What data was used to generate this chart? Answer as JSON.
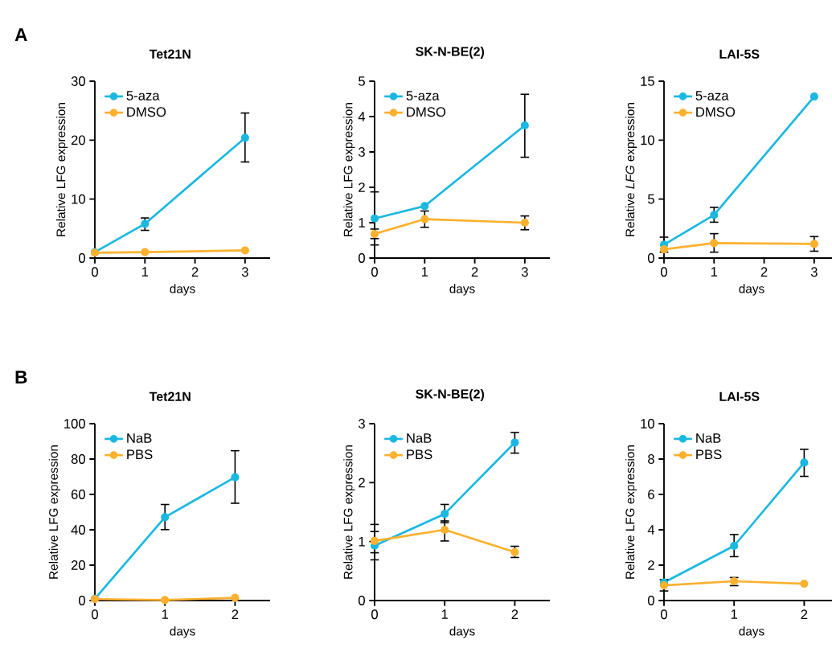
{
  "chart_data": [
    {
      "type": "line",
      "title": "Tet21N",
      "xlabel": "days",
      "ylabel": "Relative LFG expression",
      "annotations": [
        "A"
      ],
      "x": [
        0,
        1,
        3
      ],
      "xlim": [
        0,
        3.5
      ],
      "xticks": [
        0,
        1,
        2,
        3
      ],
      "ylim": [
        0,
        30
      ],
      "yticks": [
        0,
        10,
        20,
        30
      ],
      "marker": "circle",
      "legend": "top left",
      "series": [
        {
          "name": "5-aza",
          "color": "#1ab8e0",
          "values": [
            1.0,
            5.8,
            20.4
          ],
          "errors": [
            null,
            [
              4.7,
              6.8
            ],
            [
              16.3,
              24.6
            ]
          ]
        },
        {
          "name": "DMSO",
          "color": "#fbb12f",
          "values": [
            0.9,
            1.0,
            1.3
          ],
          "errors": [
            null,
            null,
            null
          ]
        }
      ]
    },
    {
      "type": "line",
      "title": "SK-N-BE(2)",
      "xlabel": "days",
      "ylabel": "Relative LFG expression",
      "x": [
        0,
        1,
        3
      ],
      "xlim": [
        0,
        3.5
      ],
      "xticks": [
        0,
        1,
        2,
        3
      ],
      "ylim": [
        0,
        5
      ],
      "yticks": [
        0,
        1,
        2,
        3,
        4,
        5
      ],
      "marker": "circle",
      "legend": "top left",
      "series": [
        {
          "name": "5-aza",
          "color": "#1ab8e0",
          "values": [
            1.12,
            1.47,
            3.75
          ],
          "errors": [
            [
              0.37,
              1.87
            ],
            null,
            [
              2.85,
              4.63
            ]
          ]
        },
        {
          "name": "DMSO",
          "color": "#fbb12f",
          "values": [
            0.68,
            1.1,
            1.0
          ],
          "errors": [
            [
              0.55,
              0.82
            ],
            [
              0.87,
              1.33
            ],
            [
              0.8,
              1.19
            ]
          ]
        }
      ]
    },
    {
      "type": "line",
      "title": "LAI-5S",
      "xlabel": "days",
      "ylabel": "Relative *LFG* expression",
      "x": [
        0,
        1,
        3
      ],
      "xlim": [
        0,
        3.5
      ],
      "xticks": [
        0,
        1,
        2,
        3
      ],
      "ylim": [
        0,
        15
      ],
      "yticks": [
        0,
        5,
        10,
        15
      ],
      "marker": "circle",
      "legend": "top left",
      "series": [
        {
          "name": "5-aza",
          "color": "#1ab8e0",
          "values": [
            1.13,
            3.66,
            13.7
          ],
          "errors": [
            [
              0.5,
              1.77
            ],
            [
              3.04,
              4.3
            ],
            null
          ]
        },
        {
          "name": "DMSO",
          "color": "#fbb12f",
          "values": [
            0.74,
            1.27,
            1.2
          ],
          "errors": [
            null,
            [
              0.5,
              2.07
            ],
            [
              0.58,
              1.82
            ]
          ]
        }
      ]
    },
    {
      "type": "line",
      "title": "Tet21N",
      "xlabel": "days",
      "ylabel": "Relative LFG expression",
      "annotations": [
        "B"
      ],
      "x": [
        0,
        1,
        2
      ],
      "xlim": [
        0,
        2.5
      ],
      "xticks": [
        0,
        1,
        2
      ],
      "ylim": [
        0,
        100
      ],
      "yticks": [
        0,
        20,
        40,
        60,
        80,
        100
      ],
      "marker": "circle",
      "legend": "top left",
      "series": [
        {
          "name": "NaB",
          "color": "#1ab8e0",
          "values": [
            1.0,
            47.1,
            69.7
          ],
          "errors": [
            null,
            [
              40.1,
              54.3
            ],
            [
              55.0,
              84.7
            ]
          ]
        },
        {
          "name": "PBS",
          "color": "#fbb12f",
          "values": [
            0.8,
            0.3,
            1.5
          ],
          "errors": [
            null,
            null,
            null
          ]
        }
      ]
    },
    {
      "type": "line",
      "title": "SK-N-BE(2)",
      "xlabel": "days",
      "ylabel": "Relative LFG expression",
      "x": [
        0,
        1,
        2
      ],
      "xlim": [
        0,
        2.5
      ],
      "xticks": [
        0,
        1,
        2
      ],
      "ylim": [
        0,
        3
      ],
      "yticks": [
        0,
        1,
        2,
        3
      ],
      "marker": "circle",
      "legend": "top left",
      "series": [
        {
          "name": "NaB",
          "color": "#1ab8e0",
          "values": [
            0.93,
            1.47,
            2.68
          ],
          "errors": [
            [
              0.69,
              1.17
            ],
            [
              1.32,
              1.63
            ],
            [
              2.5,
              2.85
            ]
          ]
        },
        {
          "name": "PBS",
          "color": "#fbb12f",
          "values": [
            1.01,
            1.2,
            0.82
          ],
          "errors": [
            [
              0.81,
              1.29
            ],
            [
              1.01,
              1.35
            ],
            [
              0.73,
              0.92
            ]
          ]
        }
      ]
    },
    {
      "type": "line",
      "title": "LAI-5S",
      "xlabel": "days",
      "ylabel": "Relative LFG expression",
      "x": [
        0,
        1,
        2
      ],
      "xlim": [
        0,
        2.5
      ],
      "xticks": [
        0,
        1,
        2
      ],
      "ylim": [
        0,
        10
      ],
      "yticks": [
        0,
        2,
        4,
        6,
        8,
        10
      ],
      "marker": "circle",
      "legend": "top left",
      "series": [
        {
          "name": "NaB",
          "color": "#1ab8e0",
          "values": [
            1.02,
            3.09,
            7.8
          ],
          "errors": [
            [
              0.54,
              1.18
            ],
            [
              2.48,
              3.73
            ],
            [
              7.02,
              8.55
            ]
          ]
        },
        {
          "name": "PBS",
          "color": "#fbb12f",
          "values": [
            0.86,
            1.09,
            0.95
          ],
          "errors": [
            null,
            [
              0.84,
              1.3
            ],
            null
          ]
        }
      ]
    }
  ]
}
